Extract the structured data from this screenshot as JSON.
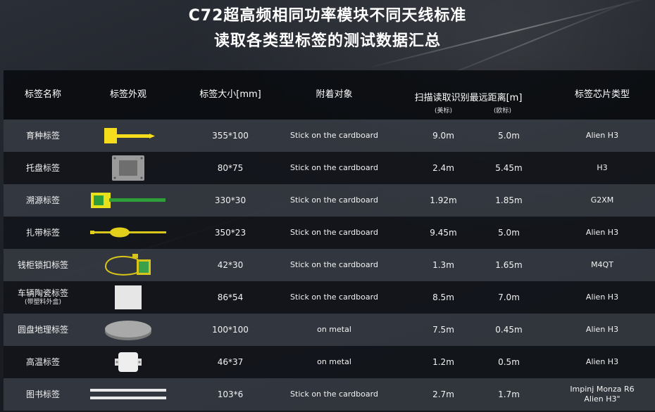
{
  "title": {
    "line1": "C72超高频相同功率模块不同天线标准",
    "line2": "读取各类型标签的测试数据汇总"
  },
  "header": {
    "name": "标签名称",
    "look": "标签外观",
    "size": "标签大小[mm]",
    "object": "附着对象",
    "scan": "扫描读取识别最远距离[m]",
    "us_label": "(美标)",
    "eu_label": "(欧标)",
    "chip": "标签芯片类型"
  },
  "rows": [
    {
      "name": "育种标签",
      "icon": "yellow-cable-tie-tag-icon",
      "size": "355*100",
      "object": "Stick on the cardboard",
      "us": "9.0m",
      "eu": "5.0m",
      "chip": "Alien H3"
    },
    {
      "name": "托盘标签",
      "icon": "gray-pallet-tag-icon",
      "size": "80*75",
      "object": "Stick on the cardboard",
      "us": "2.4m",
      "eu": "5.45m",
      "chip": "H3"
    },
    {
      "name": "溯源标签",
      "icon": "green-traceability-tag-icon",
      "size": "330*30",
      "object": "Stick on the cardboard",
      "us": "1.92m",
      "eu": "1.85m",
      "chip": "G2XM"
    },
    {
      "name": "扎带标签",
      "icon": "yellow-strap-tag-icon",
      "size": "350*23",
      "object": "Stick on the cardboard",
      "us": "9.45m",
      "eu": "5.0m",
      "chip": "Alien H3"
    },
    {
      "name": "钱柜锁扣标签",
      "icon": "cash-box-lock-tag-icon",
      "size": "42*30",
      "object": "Stick on the cardboard",
      "us": "1.3m",
      "eu": "1.65m",
      "chip": "M4QT"
    },
    {
      "name": "车辆陶瓷标签",
      "name_sub": "(带塑料外盒)",
      "icon": "ceramic-tag-icon",
      "size": "86*54",
      "object": "Stick on the cardboard",
      "us": "8.5m",
      "eu": "7.0m",
      "chip": "Alien H3"
    },
    {
      "name": "圆盘地理标签",
      "icon": "disc-geo-tag-icon",
      "size": "100*100",
      "object": "on metal",
      "us": "7.5m",
      "eu": "0.45m",
      "chip": "Alien H3"
    },
    {
      "name": "高温标签",
      "icon": "high-temp-tag-icon",
      "size": "46*37",
      "object": "on metal",
      "us": "1.2m",
      "eu": "0.5m",
      "chip": "Alien H3"
    },
    {
      "name": "图书标签",
      "icon": "book-strip-tag-icon",
      "size": "103*6",
      "object": "Stick on the cardboard",
      "us": "2.7m",
      "eu": "1.7m",
      "chip": "Impinj Monza R6",
      "chip_line2": "Alien H3\""
    }
  ]
}
